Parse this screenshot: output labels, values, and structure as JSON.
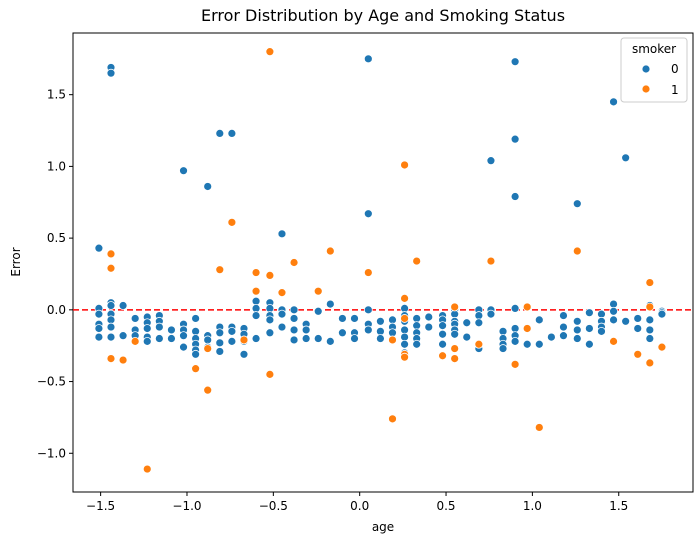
{
  "chart_data": {
    "type": "scatter",
    "title": "Error Distribution by Age and Smoking Status",
    "xlabel": "age",
    "ylabel": "Error",
    "xlim": [
      -1.66,
      1.93
    ],
    "ylim": [
      -1.27,
      1.93
    ],
    "xticks": [
      -1.5,
      -1.0,
      -0.5,
      0.0,
      0.5,
      1.0,
      1.5
    ],
    "xtick_labels": [
      "−1.5",
      "−1.0",
      "−0.5",
      "0.0",
      "0.5",
      "1.0",
      "1.5"
    ],
    "yticks": [
      -1.0,
      -0.5,
      0.0,
      0.5,
      1.0,
      1.5
    ],
    "ytick_labels": [
      "−1.0",
      "−0.5",
      "0.0",
      "0.5",
      "1.0",
      "1.5"
    ],
    "grid": false,
    "reference_line": {
      "y": 0.0,
      "color": "#ff0000",
      "style": "dashed"
    },
    "legend": {
      "title": "smoker",
      "placement": "top-right",
      "entries": [
        {
          "label": "0",
          "color": "#1f77b4"
        },
        {
          "label": "1",
          "color": "#ff7f0e"
        }
      ]
    },
    "series": [
      {
        "name": "0",
        "color": "#1f77b4",
        "points": [
          [
            -1.51,
            0.43
          ],
          [
            -1.51,
            0.01
          ],
          [
            -1.51,
            -0.03
          ],
          [
            -1.51,
            -0.1
          ],
          [
            -1.51,
            -0.13
          ],
          [
            -1.51,
            -0.19
          ],
          [
            -1.44,
            1.69
          ],
          [
            -1.44,
            1.65
          ],
          [
            -1.44,
            0.05
          ],
          [
            -1.44,
            0.03
          ],
          [
            -1.44,
            -0.03
          ],
          [
            -1.44,
            -0.07
          ],
          [
            -1.44,
            -0.12
          ],
          [
            -1.44,
            -0.19
          ],
          [
            -1.37,
            0.03
          ],
          [
            -1.37,
            -0.18
          ],
          [
            -1.3,
            -0.06
          ],
          [
            -1.3,
            -0.14
          ],
          [
            -1.3,
            -0.18
          ],
          [
            -1.23,
            -0.05
          ],
          [
            -1.23,
            -0.09
          ],
          [
            -1.23,
            -0.13
          ],
          [
            -1.23,
            -0.19
          ],
          [
            -1.23,
            -0.22
          ],
          [
            -1.16,
            -0.04
          ],
          [
            -1.16,
            -0.08
          ],
          [
            -1.16,
            -0.12
          ],
          [
            -1.16,
            -0.2
          ],
          [
            -1.09,
            -0.14
          ],
          [
            -1.09,
            -0.2
          ],
          [
            -1.02,
            0.97
          ],
          [
            -1.02,
            -0.1
          ],
          [
            -1.02,
            -0.14
          ],
          [
            -1.02,
            -0.18
          ],
          [
            -1.02,
            -0.26
          ],
          [
            -0.95,
            -0.06
          ],
          [
            -0.95,
            -0.15
          ],
          [
            -0.95,
            -0.2
          ],
          [
            -0.95,
            -0.24
          ],
          [
            -0.95,
            -0.28
          ],
          [
            -0.95,
            -0.31
          ],
          [
            -0.88,
            0.86
          ],
          [
            -0.88,
            -0.18
          ],
          [
            -0.88,
            -0.21
          ],
          [
            -0.88,
            -0.26
          ],
          [
            -0.81,
            1.23
          ],
          [
            -0.81,
            -0.12
          ],
          [
            -0.81,
            -0.16
          ],
          [
            -0.81,
            -0.23
          ],
          [
            -0.81,
            -0.29
          ],
          [
            -0.74,
            1.23
          ],
          [
            -0.74,
            -0.12
          ],
          [
            -0.74,
            -0.15
          ],
          [
            -0.74,
            -0.22
          ],
          [
            -0.67,
            -0.13
          ],
          [
            -0.67,
            -0.17
          ],
          [
            -0.67,
            -0.22
          ],
          [
            -0.67,
            -0.31
          ],
          [
            -0.6,
            0.06
          ],
          [
            -0.6,
            0.01
          ],
          [
            -0.6,
            -0.04
          ],
          [
            -0.6,
            -0.2
          ],
          [
            -0.52,
            0.05
          ],
          [
            -0.52,
            0.01
          ],
          [
            -0.52,
            -0.04
          ],
          [
            -0.52,
            -0.07
          ],
          [
            -0.52,
            -0.16
          ],
          [
            -0.45,
            0.53
          ],
          [
            -0.45,
            0.0
          ],
          [
            -0.45,
            -0.03
          ],
          [
            -0.45,
            -0.12
          ],
          [
            -0.38,
            0.0
          ],
          [
            -0.38,
            -0.06
          ],
          [
            -0.38,
            -0.14
          ],
          [
            -0.38,
            -0.21
          ],
          [
            -0.31,
            -0.1
          ],
          [
            -0.31,
            -0.14
          ],
          [
            -0.31,
            -0.2
          ],
          [
            -0.24,
            -0.01
          ],
          [
            -0.24,
            -0.2
          ],
          [
            -0.17,
            0.04
          ],
          [
            -0.17,
            -0.22
          ],
          [
            -0.1,
            -0.06
          ],
          [
            -0.1,
            -0.16
          ],
          [
            -0.03,
            -0.06
          ],
          [
            -0.03,
            -0.16
          ],
          [
            -0.03,
            -0.2
          ],
          [
            0.05,
            1.75
          ],
          [
            0.05,
            0.67
          ],
          [
            0.05,
            0.0
          ],
          [
            0.05,
            -0.1
          ],
          [
            0.05,
            -0.14
          ],
          [
            0.12,
            -0.08
          ],
          [
            0.12,
            -0.15
          ],
          [
            0.12,
            -0.2
          ],
          [
            0.19,
            -0.07
          ],
          [
            0.19,
            -0.12
          ],
          [
            0.19,
            -0.16
          ],
          [
            0.26,
            0.01
          ],
          [
            0.26,
            -0.04
          ],
          [
            0.26,
            -0.08
          ],
          [
            0.26,
            -0.14
          ],
          [
            0.26,
            -0.19
          ],
          [
            0.26,
            -0.24
          ],
          [
            0.26,
            -0.3
          ],
          [
            0.33,
            -0.06
          ],
          [
            0.33,
            -0.11
          ],
          [
            0.33,
            -0.16
          ],
          [
            0.33,
            -0.2
          ],
          [
            0.33,
            -0.24
          ],
          [
            0.4,
            -0.05
          ],
          [
            0.4,
            -0.12
          ],
          [
            0.48,
            -0.04
          ],
          [
            0.48,
            -0.07
          ],
          [
            0.48,
            -0.11
          ],
          [
            0.48,
            -0.17
          ],
          [
            0.48,
            -0.24
          ],
          [
            0.55,
            0.0
          ],
          [
            0.55,
            -0.03
          ],
          [
            0.55,
            -0.08
          ],
          [
            0.55,
            -0.1
          ],
          [
            0.55,
            -0.14
          ],
          [
            0.55,
            -0.17
          ],
          [
            0.62,
            -0.09
          ],
          [
            0.62,
            -0.19
          ],
          [
            0.69,
            0.0
          ],
          [
            0.69,
            -0.04
          ],
          [
            0.69,
            -0.09
          ],
          [
            0.69,
            -0.27
          ],
          [
            0.76,
            1.04
          ],
          [
            0.76,
            0.0
          ],
          [
            0.76,
            -0.03
          ],
          [
            0.83,
            -0.15
          ],
          [
            0.83,
            -0.2
          ],
          [
            0.83,
            -0.24
          ],
          [
            0.83,
            -0.27
          ],
          [
            0.9,
            1.73
          ],
          [
            0.9,
            1.19
          ],
          [
            0.9,
            0.79
          ],
          [
            0.9,
            0.01
          ],
          [
            0.9,
            -0.13
          ],
          [
            0.9,
            -0.18
          ],
          [
            0.9,
            -0.22
          ],
          [
            0.97,
            -0.24
          ],
          [
            1.04,
            -0.07
          ],
          [
            1.04,
            -0.24
          ],
          [
            1.11,
            -0.19
          ],
          [
            1.18,
            -0.04
          ],
          [
            1.18,
            -0.12
          ],
          [
            1.18,
            -0.18
          ],
          [
            1.26,
            0.74
          ],
          [
            1.26,
            -0.08
          ],
          [
            1.26,
            -0.14
          ],
          [
            1.26,
            -0.2
          ],
          [
            1.33,
            -0.02
          ],
          [
            1.33,
            -0.13
          ],
          [
            1.33,
            -0.24
          ],
          [
            1.4,
            -0.03
          ],
          [
            1.4,
            -0.08
          ],
          [
            1.4,
            -0.12
          ],
          [
            1.4,
            -0.15
          ],
          [
            1.47,
            1.45
          ],
          [
            1.47,
            0.04
          ],
          [
            1.47,
            -0.01
          ],
          [
            1.47,
            -0.07
          ],
          [
            1.54,
            1.06
          ],
          [
            1.54,
            -0.08
          ],
          [
            1.61,
            -0.06
          ],
          [
            1.61,
            -0.13
          ],
          [
            1.68,
            0.03
          ],
          [
            1.68,
            -0.07
          ],
          [
            1.68,
            -0.14
          ],
          [
            1.68,
            -0.2
          ],
          [
            1.75,
            -0.01
          ],
          [
            1.75,
            -0.02
          ],
          [
            1.75,
            -0.03
          ]
        ]
      },
      {
        "name": "1",
        "color": "#ff7f0e",
        "points": [
          [
            -1.44,
            0.39
          ],
          [
            -1.44,
            0.29
          ],
          [
            -1.44,
            -0.34
          ],
          [
            -1.37,
            -0.35
          ],
          [
            -1.3,
            -0.22
          ],
          [
            -1.23,
            -1.11
          ],
          [
            -0.95,
            -0.41
          ],
          [
            -0.88,
            -0.27
          ],
          [
            -0.88,
            -0.56
          ],
          [
            -0.81,
            0.28
          ],
          [
            -0.74,
            0.61
          ],
          [
            -0.67,
            -0.21
          ],
          [
            -0.6,
            0.26
          ],
          [
            -0.6,
            0.13
          ],
          [
            -0.52,
            1.8
          ],
          [
            -0.52,
            0.24
          ],
          [
            -0.52,
            -0.45
          ],
          [
            -0.45,
            0.12
          ],
          [
            -0.38,
            0.33
          ],
          [
            -0.24,
            0.13
          ],
          [
            -0.17,
            0.41
          ],
          [
            0.05,
            0.26
          ],
          [
            0.19,
            -0.76
          ],
          [
            0.19,
            -0.21
          ],
          [
            0.26,
            1.01
          ],
          [
            0.26,
            0.08
          ],
          [
            0.26,
            -0.06
          ],
          [
            0.26,
            -0.31
          ],
          [
            0.26,
            -0.33
          ],
          [
            0.33,
            0.34
          ],
          [
            0.48,
            -0.32
          ],
          [
            0.55,
            0.02
          ],
          [
            0.55,
            -0.27
          ],
          [
            0.55,
            -0.34
          ],
          [
            0.69,
            -0.24
          ],
          [
            0.76,
            0.34
          ],
          [
            0.9,
            -0.38
          ],
          [
            0.97,
            0.02
          ],
          [
            0.97,
            -0.13
          ],
          [
            1.04,
            -0.82
          ],
          [
            1.26,
            0.41
          ],
          [
            1.47,
            -0.22
          ],
          [
            1.61,
            -0.31
          ],
          [
            1.68,
            0.19
          ],
          [
            1.68,
            0.02
          ],
          [
            1.68,
            -0.37
          ],
          [
            1.75,
            -0.26
          ]
        ]
      }
    ]
  }
}
